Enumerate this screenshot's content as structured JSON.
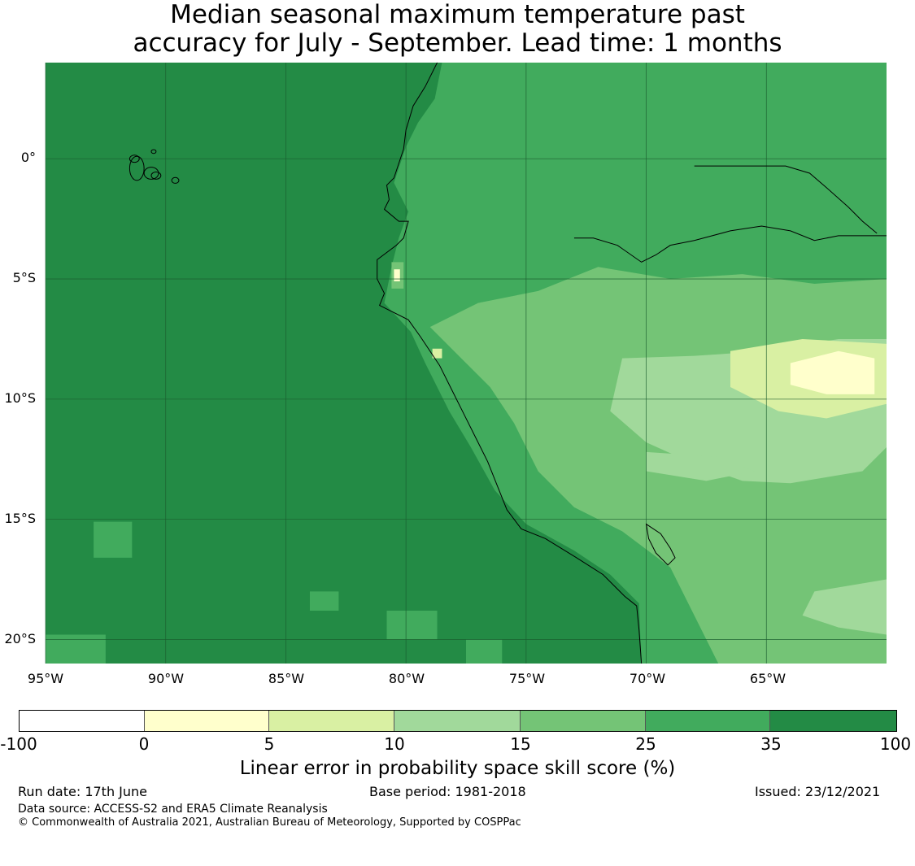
{
  "title": {
    "line1": "Median seasonal maximum temperature past",
    "line2": "accuracy for July - September. Lead time: 1 months"
  },
  "map": {
    "lat_labels": [
      "0°",
      "5°S",
      "10°S",
      "15°S",
      "20°S"
    ],
    "lon_labels": [
      "95°W",
      "90°W",
      "85°W",
      "80°W",
      "75°W",
      "70°W",
      "65°W"
    ],
    "lat_values": [
      0,
      -5,
      -10,
      -15,
      -20
    ],
    "lon_values": [
      -95,
      -90,
      -85,
      -80,
      -75,
      -70,
      -65
    ],
    "extent": {
      "lon": [
        -95,
        -60
      ],
      "lat": [
        -21,
        4
      ]
    },
    "colors": {
      "ocean": "#238b45",
      "band_25_35": "#41ab5d",
      "band_15_25": "#74c476",
      "band_10_15": "#a1d99b",
      "band_5_10": "#d9f0a3",
      "band_0_5": "#ffffcc",
      "coast": "#000000",
      "grid": "#1a5c2e"
    }
  },
  "colorbar": {
    "ticks": [
      "-100",
      "0",
      "5",
      "10",
      "15",
      "25",
      "35",
      "100"
    ],
    "colors": [
      "#ffffff",
      "#ffffcc",
      "#d9f0a3",
      "#a1d99b",
      "#74c476",
      "#41ab5d",
      "#238b45"
    ],
    "label": "Linear error in probability space skill score (%)"
  },
  "footer": {
    "run_date": "Run date: 17th June",
    "base_period": "Base period: 1981-2018",
    "issued": "Issued: 23/12/2021",
    "data_source": "Data source: ACCESS-S2 and ERA5 Climate Reanalysis",
    "copyright": "© Commonwealth of Australia 2021, Australian Bureau of Meteorology, Supported by COSPPac"
  }
}
